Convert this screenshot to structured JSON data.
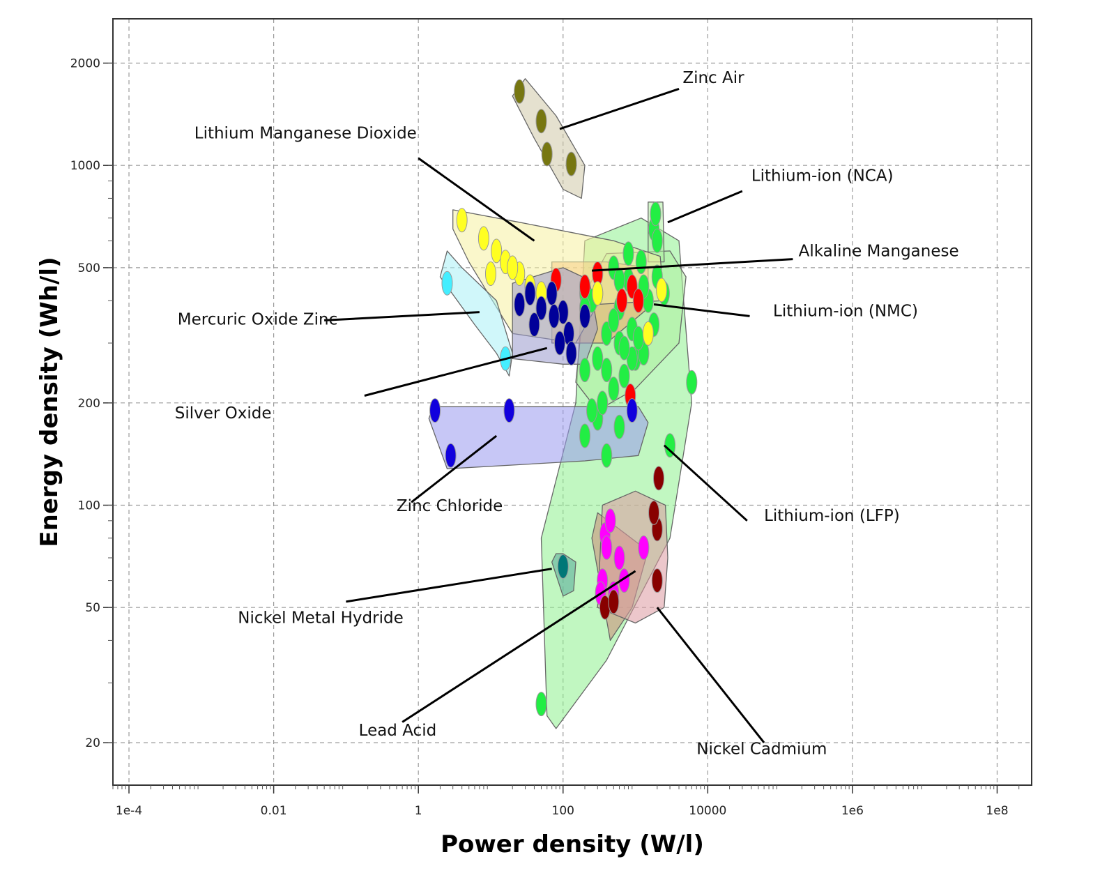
{
  "chart_data": {
    "type": "scatter",
    "title": "",
    "xlabel": "Power density (W/l)",
    "ylabel": "Energy density (Wh/l)",
    "xscale": "log",
    "yscale": "log",
    "xlim": [
      6e-05,
      300000000
    ],
    "ylim": [
      15,
      2700
    ],
    "grid": true,
    "legend": "none",
    "x_ticks": [
      {
        "value": 0.0001,
        "label": "1e-4"
      },
      {
        "value": 0.01,
        "label": "0.01"
      },
      {
        "value": 1,
        "label": "1"
      },
      {
        "value": 100,
        "label": "100"
      },
      {
        "value": 10000,
        "label": "10000"
      },
      {
        "value": 1000000,
        "label": "1e6"
      },
      {
        "value": 100000000,
        "label": "1e8"
      }
    ],
    "y_ticks": [
      {
        "value": 20,
        "label": "20"
      },
      {
        "value": 50,
        "label": "50"
      },
      {
        "value": 100,
        "label": "100"
      },
      {
        "value": 200,
        "label": "200"
      },
      {
        "value": 500,
        "label": "500"
      },
      {
        "value": 1000,
        "label": "1000"
      },
      {
        "value": 2000,
        "label": "2000"
      }
    ],
    "series": [
      {
        "name": "Lithium-ion (LFP)",
        "color": "#22ee44",
        "region_color": "#8ef08e",
        "region": [
          [
            60,
            24
          ],
          [
            50,
            80
          ],
          [
            150,
            200
          ],
          [
            200,
            600
          ],
          [
            1200,
            700
          ],
          [
            4000,
            600
          ],
          [
            6000,
            200
          ],
          [
            3000,
            80
          ],
          [
            400,
            35
          ],
          [
            80,
            22
          ]
        ],
        "label_at": [
          60000,
          90
        ],
        "pointer": [
          [
            35000,
            90
          ],
          [
            2500,
            150
          ]
        ],
        "points": [
          [
            50,
            26
          ],
          [
            200,
            160
          ],
          [
            300,
            180
          ],
          [
            400,
            250
          ],
          [
            600,
            300
          ],
          [
            200,
            250
          ],
          [
            500,
            220
          ],
          [
            250,
            190
          ],
          [
            1000,
            270
          ],
          [
            3000,
            150
          ],
          [
            6000,
            230
          ],
          [
            200,
            420
          ],
          [
            900,
            270
          ],
          [
            700,
            240
          ],
          [
            350,
            200
          ],
          [
            250,
            400
          ],
          [
            600,
            170
          ],
          [
            1300,
            280
          ],
          [
            400,
            140
          ]
        ]
      },
      {
        "name": "Lithium-ion (NMC)",
        "color": "#22ee44",
        "region_color": "#aef0a0",
        "region": [
          [
            150,
            230
          ],
          [
            200,
            420
          ],
          [
            400,
            550
          ],
          [
            3000,
            560
          ],
          [
            5000,
            470
          ],
          [
            4000,
            300
          ],
          [
            1000,
            220
          ],
          [
            300,
            190
          ]
        ],
        "label_at": [
          80000,
          360
        ],
        "pointer": [
          [
            38000,
            360
          ],
          [
            1800,
            390
          ]
        ],
        "points": [
          [
            200,
            380
          ],
          [
            300,
            420
          ],
          [
            500,
            500
          ],
          [
            800,
            460
          ],
          [
            1200,
            520
          ],
          [
            2000,
            470
          ],
          [
            600,
            380
          ],
          [
            900,
            330
          ],
          [
            1500,
            400
          ],
          [
            2500,
            420
          ],
          [
            400,
            320
          ],
          [
            700,
            290
          ],
          [
            1100,
            310
          ],
          [
            1800,
            340
          ],
          [
            300,
            270
          ],
          [
            500,
            350
          ],
          [
            1300,
            440
          ],
          [
            800,
            550
          ],
          [
            600,
            460
          ]
        ]
      },
      {
        "name": "Lithium-ion (NCA)",
        "color": "#22ee44",
        "region_color": "#aef0a0",
        "region": [
          [
            1500,
            520
          ],
          [
            1500,
            780
          ],
          [
            2400,
            780
          ],
          [
            2500,
            520
          ]
        ],
        "label_at": [
          40000,
          900
        ],
        "pointer": [
          [
            30000,
            840
          ],
          [
            2800,
            680
          ]
        ],
        "points": [
          [
            1800,
            650
          ],
          [
            1900,
            720
          ],
          [
            2000,
            600
          ]
        ]
      },
      {
        "name": "Alkaline Manganese",
        "color": "#ff0000",
        "region_color": "#f9a86a",
        "region": [
          [
            70,
            300
          ],
          [
            70,
            520
          ],
          [
            400,
            520
          ],
          [
            1500,
            500
          ],
          [
            1500,
            380
          ],
          [
            400,
            300
          ]
        ],
        "label_at": [
          180000,
          540
        ],
        "pointer": [
          [
            150000,
            530
          ],
          [
            250,
            490
          ]
        ],
        "points": [
          [
            80,
            460
          ],
          [
            200,
            440
          ],
          [
            300,
            480
          ],
          [
            900,
            440
          ],
          [
            1100,
            400
          ],
          [
            850,
            210
          ],
          [
            650,
            400
          ]
        ]
      },
      {
        "name": "Lithium Manganese Dioxide",
        "color": "#ffff22",
        "region_color": "#f6f0a0",
        "region": [
          [
            3,
            650
          ],
          [
            3,
            740
          ],
          [
            25,
            680
          ],
          [
            500,
            600
          ],
          [
            2200,
            540
          ],
          [
            2500,
            400
          ],
          [
            300,
            390
          ],
          [
            150,
            300
          ],
          [
            20,
            320
          ],
          [
            5,
            520
          ]
        ],
        "label_at": [
          0.0008,
          1200
        ],
        "pointer": [
          [
            1.0,
            1050
          ],
          [
            40,
            600
          ]
        ],
        "points": [
          [
            4,
            690
          ],
          [
            8,
            610
          ],
          [
            12,
            560
          ],
          [
            16,
            520
          ],
          [
            25,
            480
          ],
          [
            35,
            440
          ],
          [
            10,
            480
          ],
          [
            20,
            500
          ],
          [
            50,
            420
          ],
          [
            300,
            420
          ],
          [
            2300,
            430
          ],
          [
            1500,
            320
          ]
        ]
      },
      {
        "name": "Mercuric Oxide Zinc",
        "color": "#44eeff",
        "region_color": "#aaf0f5",
        "region": [
          [
            2,
            470
          ],
          [
            2.5,
            560
          ],
          [
            4,
            500
          ],
          [
            12,
            400
          ],
          [
            20,
            280
          ],
          [
            18,
            240
          ],
          [
            12,
            280
          ],
          [
            6,
            340
          ]
        ],
        "label_at": [
          0.00047,
          340
        ],
        "pointer": [
          [
            0.05,
            350
          ],
          [
            7,
            370
          ]
        ],
        "points": [
          [
            2.5,
            450
          ],
          [
            16,
            270
          ]
        ]
      },
      {
        "name": "Silver Oxide",
        "color": "#000099",
        "region_color": "#9999cc",
        "region": [
          [
            20,
            270
          ],
          [
            20,
            450
          ],
          [
            100,
            500
          ],
          [
            230,
            460
          ],
          [
            300,
            330
          ],
          [
            200,
            260
          ],
          [
            100,
            260
          ]
        ],
        "label_at": [
          0.00043,
          180
        ],
        "pointer": [
          [
            0.18,
            210
          ],
          [
            60,
            290
          ]
        ],
        "points": [
          [
            25,
            390
          ],
          [
            35,
            420
          ],
          [
            50,
            380
          ],
          [
            40,
            340
          ],
          [
            70,
            420
          ],
          [
            100,
            370
          ],
          [
            120,
            320
          ],
          [
            130,
            280
          ],
          [
            200,
            360
          ],
          [
            75,
            360
          ],
          [
            90,
            300
          ]
        ]
      },
      {
        "name": "Zinc Chloride",
        "color": "#1100dd",
        "region_color": "#9999ee",
        "region": [
          [
            1.4,
            180
          ],
          [
            1.6,
            195
          ],
          [
            30,
            195
          ],
          [
            1100,
            195
          ],
          [
            1500,
            175
          ],
          [
            1100,
            140
          ],
          [
            200,
            135
          ],
          [
            2.5,
            128
          ]
        ],
        "label_at": [
          0.5,
          96
        ],
        "pointer": [
          [
            0.8,
            102
          ],
          [
            12,
            160
          ]
        ],
        "points": [
          [
            1.7,
            190
          ],
          [
            2.8,
            140
          ],
          [
            18,
            190
          ],
          [
            900,
            190
          ]
        ]
      },
      {
        "name": "Nickel Metal Hydride",
        "color": "#007777",
        "region_color": "#55aa99",
        "region": [
          [
            70,
            68
          ],
          [
            80,
            72
          ],
          [
            100,
            72
          ],
          [
            150,
            68
          ],
          [
            140,
            56
          ],
          [
            100,
            54
          ]
        ],
        "label_at": [
          0.0032,
          45
        ],
        "pointer": [
          [
            0.1,
            52
          ],
          [
            70,
            65
          ]
        ],
        "points": [
          [
            100,
            66
          ]
        ]
      },
      {
        "name": "Lead Acid",
        "color": "#ff00ff",
        "region_color": "#cc8877",
        "region": [
          [
            250,
            80
          ],
          [
            300,
            95
          ],
          [
            600,
            85
          ],
          [
            1300,
            75
          ],
          [
            1400,
            70
          ],
          [
            900,
            50
          ],
          [
            450,
            40
          ]
        ],
        "label_at": [
          0.15,
          21
        ],
        "pointer": [
          [
            0.6,
            23
          ],
          [
            1000,
            64
          ]
        ],
        "points": [
          [
            350,
            60
          ],
          [
            380,
            82
          ],
          [
            450,
            90
          ],
          [
            400,
            75
          ],
          [
            330,
            55
          ],
          [
            600,
            70
          ],
          [
            1300,
            75
          ],
          [
            500,
            55
          ],
          [
            700,
            60
          ]
        ]
      },
      {
        "name": "Nickel Cadmium",
        "color": "#880000",
        "region_color": "#dd99a0",
        "region": [
          [
            300,
            50
          ],
          [
            350,
            100
          ],
          [
            1000,
            110
          ],
          [
            2600,
            100
          ],
          [
            2800,
            70
          ],
          [
            2500,
            50
          ],
          [
            1000,
            45
          ]
        ],
        "label_at": [
          7000,
          18.5
        ],
        "pointer": [
          [
            60000,
            20
          ],
          [
            2000,
            50
          ]
        ],
        "points": [
          [
            2100,
            120
          ],
          [
            2000,
            85
          ],
          [
            2000,
            60
          ],
          [
            380,
            50
          ],
          [
            500,
            52
          ],
          [
            1800,
            95
          ]
        ]
      },
      {
        "name": "Zinc Air",
        "color": "#777711",
        "region_color": "#cfc8a8",
        "region": [
          [
            20,
            1600
          ],
          [
            30,
            1800
          ],
          [
            80,
            1400
          ],
          [
            200,
            1000
          ],
          [
            180,
            800
          ],
          [
            100,
            850
          ],
          [
            40,
            1200
          ]
        ],
        "label_at": [
          4500,
          1750
        ],
        "pointer": [
          [
            4000,
            1680
          ],
          [
            90,
            1280
          ]
        ],
        "points": [
          [
            25,
            1650
          ],
          [
            50,
            1350
          ],
          [
            60,
            1080
          ],
          [
            130,
            1010
          ]
        ]
      }
    ]
  }
}
